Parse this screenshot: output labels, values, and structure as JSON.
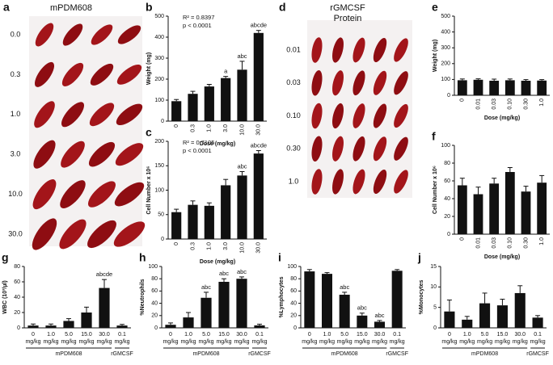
{
  "images": [
    {
      "panel": "a",
      "title_lines": [
        "mPDM608"
      ],
      "doses": [
        "0.0",
        "0.3",
        "1.0",
        "3.0",
        "10.0",
        "30.0"
      ]
    },
    {
      "panel": "d",
      "title_lines": [
        "rGMCSF",
        "Protein"
      ],
      "doses": [
        "0.01",
        "0.03",
        "0.10",
        "0.30",
        "1.0"
      ]
    }
  ],
  "chart_data": [
    {
      "type": "bar",
      "panel": "b",
      "ylabel": "Weight (mg)",
      "xlabel": "Dose (mg/kg)",
      "annotations": [
        "R² = 0.8397",
        "p < 0.0001"
      ],
      "categories": [
        "0",
        "0.3",
        "1.0",
        "3.0",
        "10.0",
        "30.0"
      ],
      "values": [
        95,
        130,
        165,
        205,
        245,
        420
      ],
      "errors": [
        8,
        12,
        10,
        8,
        40,
        12
      ],
      "bar_labels": [
        null,
        null,
        null,
        "a",
        "abc",
        "abcde"
      ],
      "color": "#111111",
      "ylim": [
        0,
        500
      ],
      "yticks": [
        0,
        100,
        200,
        300,
        400,
        500
      ]
    },
    {
      "type": "bar",
      "panel": "c",
      "ylabel": "Cell Number x 10⁶",
      "xlabel": "Dose (mg/kg)",
      "annotations": [
        "R² = 0.7105",
        "p < 0.0001"
      ],
      "categories": [
        "0",
        "0.3",
        "1.0",
        "3.0",
        "10.0",
        "30.0"
      ],
      "values": [
        55,
        70,
        68,
        110,
        130,
        175
      ],
      "errors": [
        6,
        8,
        6,
        12,
        8,
        6
      ],
      "bar_labels": [
        null,
        null,
        null,
        null,
        "abc",
        "abcde"
      ],
      "color": "#111111",
      "ylim": [
        0,
        200
      ],
      "yticks": [
        0,
        50,
        100,
        150,
        200
      ]
    },
    {
      "type": "bar",
      "panel": "e",
      "ylabel": "Weight (mg)",
      "xlabel": "Dose (mg/kg)",
      "categories": [
        "0",
        "0.01",
        "0.03",
        "0.10",
        "0.30",
        "1.0"
      ],
      "values": [
        95,
        98,
        92,
        95,
        92,
        93
      ],
      "errors": [
        8,
        6,
        10,
        8,
        7,
        6
      ],
      "color": "#111111",
      "ylim": [
        0,
        500
      ],
      "yticks": [
        0,
        100,
        200,
        300,
        400,
        500
      ]
    },
    {
      "type": "bar",
      "panel": "f",
      "ylabel": "Cell Number x 10⁶",
      "xlabel": "Dose (mg/kg)",
      "categories": [
        "0",
        "0.01",
        "0.03",
        "0.10",
        "0.30",
        "1.0"
      ],
      "values": [
        55,
        45,
        57,
        70,
        48,
        58
      ],
      "errors": [
        8,
        8,
        6,
        5,
        6,
        8
      ],
      "color": "#111111",
      "ylim": [
        0,
        100
      ],
      "yticks": [
        0,
        20,
        40,
        60,
        80,
        100
      ]
    },
    {
      "type": "bar",
      "panel": "g",
      "ylabel": "WBC (10³/µl)",
      "categories": [
        "0 mg/kg",
        "1.0 mg/kg",
        "5.0 mg/kg",
        "15.0 mg/kg",
        "30.0 mg/kg",
        "0.1 mg/kg"
      ],
      "values": [
        3,
        3,
        9,
        20,
        52,
        3
      ],
      "errors": [
        2,
        2,
        3,
        7,
        11,
        1.5
      ],
      "bar_labels": [
        null,
        null,
        null,
        null,
        "abcde",
        null
      ],
      "groups": [
        {
          "label": "mPDM608",
          "count": 5
        },
        {
          "label": "rGMCSF",
          "count": 1
        }
      ],
      "color": "#111111",
      "ylim": [
        0,
        80
      ],
      "yticks": [
        0,
        20,
        40,
        60,
        80
      ]
    },
    {
      "type": "bar",
      "panel": "h",
      "ylabel": "%Neutrophils",
      "categories": [
        "0 mg/kg",
        "1.0 mg/kg",
        "5.0 mg/kg",
        "15.0 mg/kg",
        "30.0 mg/kg",
        "0.1 mg/kg"
      ],
      "values": [
        5,
        17,
        49,
        75,
        80,
        4
      ],
      "errors": [
        3,
        8,
        9,
        5,
        3,
        2
      ],
      "bar_labels": [
        null,
        null,
        "abc",
        "abc",
        "abc",
        null
      ],
      "groups": [
        {
          "label": "mPDM608",
          "count": 5
        },
        {
          "label": "rGMCSF",
          "count": 1
        }
      ],
      "color": "#111111",
      "ylim": [
        0,
        100
      ],
      "yticks": [
        0,
        20,
        40,
        60,
        80,
        100
      ]
    },
    {
      "type": "bar",
      "panel": "i",
      "ylabel": "%Lymphocytes",
      "categories": [
        "0 mg/kg",
        "1.0 mg/kg",
        "5.0 mg/kg",
        "15.0 mg/kg",
        "30.0 mg/kg",
        "0.1 mg/kg"
      ],
      "values": [
        92,
        88,
        54,
        20,
        10,
        93
      ],
      "errors": [
        3,
        2,
        4,
        4,
        2,
        2
      ],
      "bar_labels": [
        null,
        null,
        "abc",
        "abc",
        "abc",
        null
      ],
      "groups": [
        {
          "label": "mPDM608",
          "count": 5
        },
        {
          "label": "rGMCSF",
          "count": 1
        }
      ],
      "color": "#111111",
      "ylim": [
        0,
        100
      ],
      "yticks": [
        0,
        20,
        40,
        60,
        80,
        100
      ]
    },
    {
      "type": "bar",
      "panel": "j",
      "ylabel": "%Monocytes",
      "categories": [
        "0 mg/kg",
        "1.0 mg/kg",
        "5.0 mg/kg",
        "15.0 mg/kg",
        "30.0 mg/kg",
        "0.1 mg/kg"
      ],
      "values": [
        4,
        2,
        6,
        5.5,
        8.5,
        2.5
      ],
      "errors": [
        2.8,
        0.8,
        2.5,
        1.5,
        1.8,
        0.5
      ],
      "groups": [
        {
          "label": "mPDM608",
          "count": 5
        },
        {
          "label": "rGMCSF",
          "count": 1
        }
      ],
      "color": "#111111",
      "ylim": [
        0,
        15
      ],
      "yticks": [
        0,
        5,
        10,
        15
      ]
    }
  ]
}
